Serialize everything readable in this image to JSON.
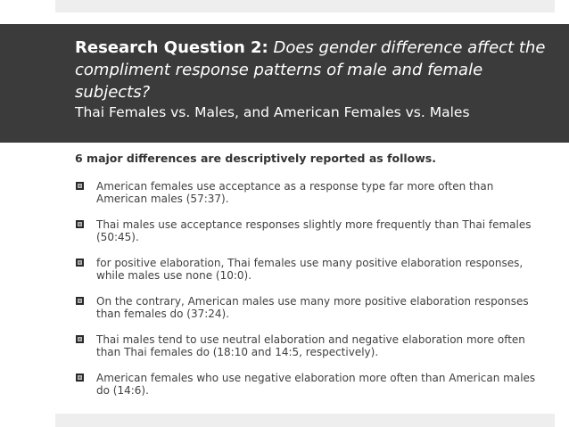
{
  "slide": {
    "title": {
      "label": "Research Question 2:",
      "question": "Does gender difference affect the compliment response patterns of male and female subjects?"
    },
    "subtitle": "Thai Females vs. Males, and American Females vs. Males",
    "lead": "6 major differences are descriptively reported as follows.",
    "bullet_icon": "square-bullet-icon",
    "bullets": [
      "American females use acceptance as a response type far more often than American males (57:37).",
      "Thai males use acceptance responses slightly more frequently than Thai females (50:45).",
      "for positive elaboration, Thai females use many positive elaboration responses, while males use none (10:0).",
      "On the contrary, American males use many more positive elaboration responses than females do (37:24).",
      "Thai males tend to use neutral elaboration and negative elaboration more often than Thai females do (18:10 and 14:5, respectively).",
      "American females who use negative elaboration more often than American males do (14:6)."
    ]
  },
  "colors": {
    "title_band": "#3b3b3b",
    "stripe": "#eeeeee",
    "text": "#404040"
  }
}
